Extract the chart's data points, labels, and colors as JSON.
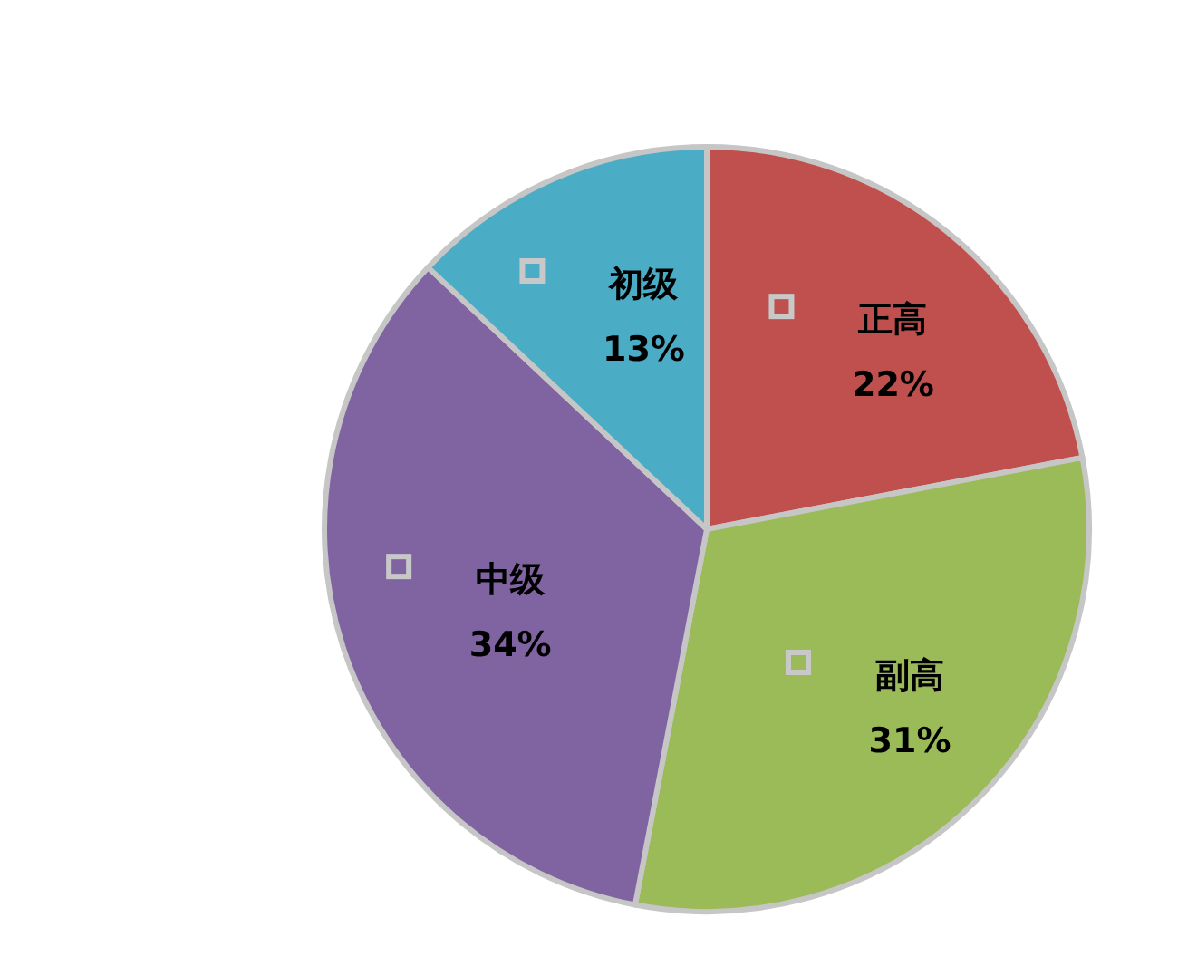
{
  "chart_data": {
    "type": "pie",
    "categories": [
      "正高",
      "副高",
      "中级",
      "初级"
    ],
    "values": [
      22,
      31,
      34,
      13
    ],
    "colors": [
      "#c0504d",
      "#9bbb59",
      "#8064a2",
      "#4bacc6"
    ],
    "value_labels": [
      "22%",
      "31%",
      "34%",
      "13%"
    ],
    "legend": "center"
  }
}
